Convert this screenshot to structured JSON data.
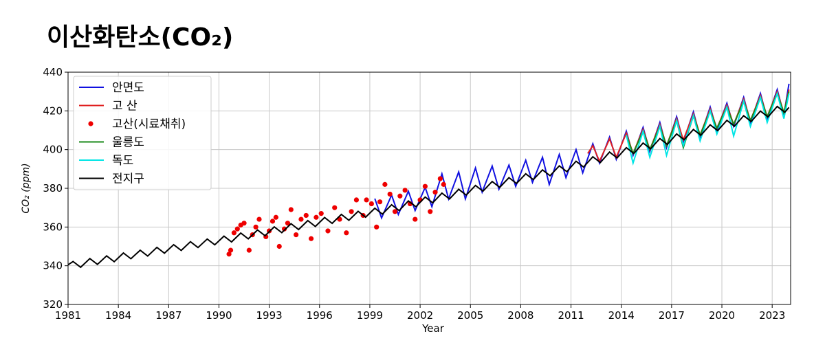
{
  "chart_data": {
    "type": "line",
    "title": "이산화탄소(CO₂)",
    "x_label": "Year",
    "y_label": "CO₂ (ppm)",
    "xlim": [
      1981,
      2024.1
    ],
    "ylim": [
      320,
      440
    ],
    "xticks": [
      1981,
      1984,
      1987,
      1990,
      1993,
      1996,
      1999,
      2002,
      2005,
      2008,
      2011,
      2014,
      2017,
      2020,
      2023
    ],
    "yticks": [
      320,
      340,
      360,
      380,
      400,
      420,
      440
    ],
    "grid": true,
    "legend": "upper-left",
    "series": [
      {
        "name": "안면도",
        "color": "#1010e0",
        "type": "line",
        "x": [
          1999.3,
          1999.7,
          2000.3,
          2000.7,
          2001.3,
          2001.7,
          2002.3,
          2002.7,
          2003.3,
          2003.7,
          2004.3,
          2004.7,
          2005.3,
          2005.7,
          2006.3,
          2006.7,
          2007.3,
          2007.7,
          2008.3,
          2008.7,
          2009.3,
          2009.7,
          2010.3,
          2010.7,
          2011.3,
          2011.7,
          2012.3,
          2012.7,
          2013.3,
          2013.7,
          2014.3,
          2014.7,
          2015.3,
          2015.7,
          2016.3,
          2016.7,
          2017.3,
          2017.7,
          2018.3,
          2018.7,
          2019.3,
          2019.7,
          2020.3,
          2020.7,
          2021.3,
          2021.7,
          2022.3,
          2022.7,
          2023.3,
          2023.7,
          2024.0
        ],
        "values": [
          374.7,
          364.7,
          376.5,
          366.5,
          378.5,
          368.5,
          380.5,
          370.5,
          387.5,
          374.5,
          388.5,
          374.5,
          390.5,
          378.0,
          391.5,
          379.5,
          392.0,
          381.0,
          394.5,
          383.0,
          396.0,
          382.0,
          397.5,
          385.5,
          400.0,
          388.0,
          403.0,
          393.0,
          406.5,
          395.0,
          409.5,
          397.0,
          411.5,
          399.0,
          414.0,
          401.0,
          417.0,
          404.0,
          419.5,
          406.5,
          422.0,
          410.0,
          424.0,
          412.0,
          427.0,
          414.0,
          429.0,
          416.0,
          431.0,
          418.0,
          434
        ]
      },
      {
        "name": "고    산",
        "color": "#e02020",
        "type": "line",
        "x": [
          2012.0,
          2012.3,
          2012.7,
          2013.3,
          2013.7,
          2014.3,
          2014.7,
          2015.3,
          2015.7,
          2016.3,
          2016.7,
          2017.3,
          2017.7,
          2018.3,
          2018.7,
          2019.3,
          2019.7,
          2020.3,
          2020.7,
          2021.3,
          2021.7,
          2022.3,
          2022.7,
          2023.3,
          2023.7,
          2024.0
        ],
        "values": [
          398,
          402,
          394,
          405.5,
          396,
          408.5,
          398,
          410.5,
          400,
          413,
          402,
          416,
          405,
          418.5,
          407.5,
          421,
          411,
          423,
          413,
          426,
          415,
          428,
          417,
          430,
          419,
          431
        ]
      },
      {
        "name": "고산(시료채취)",
        "color": "#ee0000",
        "type": "scatter",
        "x": [
          1990.6,
          1990.7,
          1990.9,
          1991.1,
          1991.3,
          1991.5,
          1991.8,
          1992.0,
          1992.2,
          1992.4,
          1992.8,
          1993.0,
          1993.2,
          1993.4,
          1993.6,
          1993.9,
          1994.1,
          1994.3,
          1994.6,
          1994.9,
          1995.2,
          1995.5,
          1995.8,
          1996.1,
          1996.5,
          1996.9,
          1997.2,
          1997.6,
          1997.9,
          1998.2,
          1998.6,
          1998.8,
          1999.1,
          1999.4,
          1999.6,
          1999.9,
          2000.2,
          2000.5,
          2000.8,
          2001.1,
          2001.4,
          2001.7,
          2002.0,
          2002.3,
          2002.6,
          2002.9,
          2003.2,
          2003.4
        ],
        "values": [
          346,
          348,
          357,
          359,
          361,
          362,
          348,
          356,
          360,
          364,
          355,
          358,
          363,
          365,
          350,
          359,
          362,
          369,
          356,
          364,
          366,
          354,
          365,
          367,
          358,
          370,
          364,
          357,
          368,
          374,
          366,
          374,
          372,
          360,
          373,
          382,
          377,
          368,
          376,
          379,
          372,
          364,
          374,
          381,
          368,
          378,
          385,
          382
        ]
      },
      {
        "name": "울릉도",
        "color": "#1a8a1a",
        "type": "line",
        "x": [
          2014.3,
          2014.7,
          2015.3,
          2015.7,
          2016.3,
          2016.7,
          2017.3,
          2017.7,
          2018.3,
          2018.7,
          2019.3,
          2019.7,
          2020.3,
          2020.7,
          2021.3,
          2021.7,
          2022.3,
          2022.7,
          2023.3,
          2023.7,
          2024.0
        ],
        "values": [
          407.5,
          398,
          409.5,
          400,
          412,
          402,
          415,
          401,
          417.5,
          407.5,
          420,
          411,
          422,
          413,
          425,
          415,
          427,
          417,
          429,
          419,
          430
        ]
      },
      {
        "name": "독도",
        "color": "#00e5e5",
        "type": "line",
        "x": [
          2014.3,
          2014.7,
          2015.3,
          2015.7,
          2016.3,
          2016.7,
          2017.3,
          2017.7,
          2018.3,
          2018.7,
          2019.3,
          2019.7,
          2020.3,
          2020.7,
          2021.3,
          2021.7,
          2022.3,
          2022.7,
          2023.3,
          2023.7,
          2024.0
        ],
        "values": [
          407.5,
          393,
          409.5,
          396,
          412,
          397,
          415,
          402,
          417.5,
          404.5,
          420,
          408,
          422,
          407,
          425,
          412,
          427,
          414,
          429,
          416,
          429
        ]
      },
      {
        "name": "전지구",
        "color": "#000000",
        "type": "line",
        "x": [
          1981.0,
          1981.3,
          1981.75,
          1982.3,
          1982.75,
          1983.3,
          1983.75,
          1984.3,
          1984.75,
          1985.3,
          1985.75,
          1986.3,
          1986.75,
          1987.3,
          1987.75,
          1988.3,
          1988.75,
          1989.3,
          1989.75,
          1990.3,
          1990.75,
          1991.3,
          1991.75,
          1992.3,
          1992.75,
          1993.3,
          1993.75,
          1994.3,
          1994.75,
          1995.3,
          1995.75,
          1996.3,
          1996.75,
          1997.3,
          1997.75,
          1998.3,
          1998.75,
          1999.3,
          1999.75,
          2000.3,
          2000.75,
          2001.3,
          2001.75,
          2002.3,
          2002.75,
          2003.3,
          2003.75,
          2004.3,
          2004.75,
          2005.3,
          2005.75,
          2006.3,
          2006.75,
          2007.3,
          2007.75,
          2008.3,
          2008.75,
          2009.3,
          2009.75,
          2010.3,
          2010.75,
          2011.3,
          2011.75,
          2012.3,
          2012.75,
          2013.3,
          2013.75,
          2014.3,
          2014.75,
          2015.3,
          2015.75,
          2016.3,
          2016.75,
          2017.3,
          2017.75,
          2018.3,
          2018.75,
          2019.3,
          2019.75,
          2020.3,
          2020.75,
          2021.3,
          2021.75,
          2022.3,
          2022.75,
          2023.3,
          2023.75,
          2024.0
        ],
        "values": [
          340.5,
          342.2,
          339.2,
          343.7,
          340.7,
          345.1,
          342.1,
          346.6,
          343.6,
          348.0,
          345.0,
          349.5,
          346.5,
          350.9,
          347.9,
          352.4,
          349.4,
          353.8,
          350.8,
          355.3,
          352.3,
          356.9,
          353.9,
          358.5,
          355.5,
          360.1,
          357.1,
          361.7,
          358.7,
          363.3,
          360.3,
          364.9,
          361.9,
          366.5,
          363.5,
          368.1,
          365.1,
          369.7,
          366.7,
          371.5,
          368.5,
          373.5,
          370.5,
          375.5,
          372.5,
          377.5,
          374.5,
          379.5,
          376.5,
          381.5,
          378.5,
          383.5,
          380.5,
          385.5,
          382.5,
          387.5,
          384.5,
          389.5,
          386.5,
          391.6,
          388.6,
          394.0,
          391.0,
          396.3,
          393.3,
          398.7,
          395.7,
          401.0,
          398.0,
          403.4,
          400.4,
          405.7,
          402.7,
          408.1,
          405.1,
          410.4,
          407.4,
          412.8,
          409.8,
          415.1,
          412.1,
          417.5,
          414.5,
          419.9,
          416.9,
          422.3,
          419.3,
          421.8
        ]
      }
    ]
  }
}
